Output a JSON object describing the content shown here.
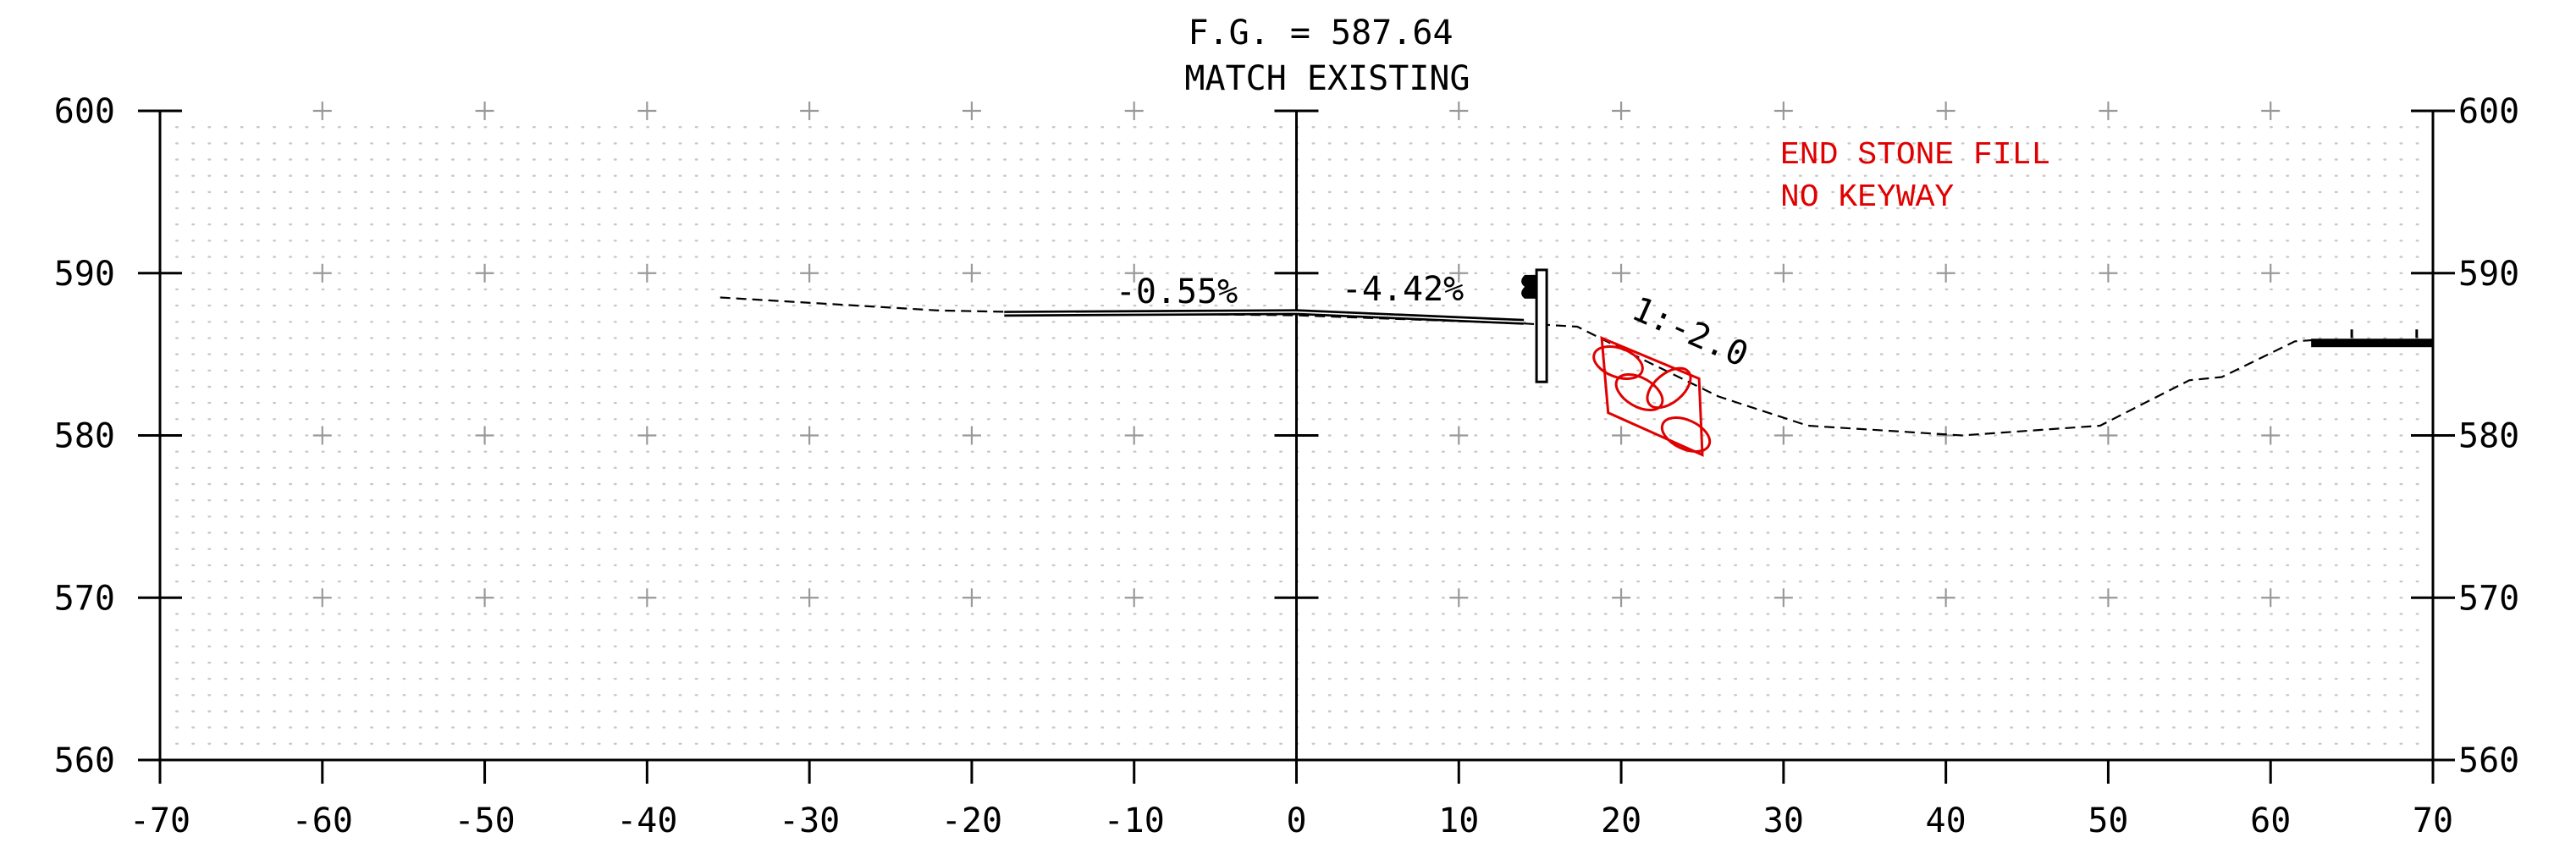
{
  "header": {
    "fg_line": "F.G. = 587.64",
    "match_line": "MATCH EXISTING"
  },
  "notes": {
    "line1": "END STONE FILL",
    "line2": "NO KEYWAY"
  },
  "annotations": {
    "left_slope": "-0.55%",
    "right_slope": "-4.42%",
    "side_slope": "1:-2.0"
  },
  "axes": {
    "x_ticks": [
      "-70",
      "-60",
      "-50",
      "-40",
      "-30",
      "-20",
      "-10",
      "0",
      "10",
      "20",
      "30",
      "40",
      "50",
      "60",
      "70"
    ],
    "y_ticks": [
      "600",
      "590",
      "580",
      "570",
      "560"
    ],
    "x_range": [
      -70,
      70
    ],
    "y_range": [
      560,
      600
    ]
  },
  "profile": {
    "existing_ground": [
      [
        -35.5,
        588.5
      ],
      [
        -22,
        587.7
      ],
      [
        -17,
        587.6
      ],
      [
        0,
        587.4
      ],
      [
        14,
        586.9
      ],
      [
        17.3,
        586.7
      ],
      [
        21.5,
        584.6
      ],
      [
        26,
        582.4
      ],
      [
        31.5,
        580.6
      ],
      [
        41,
        580.0
      ],
      [
        49.5,
        580.6
      ],
      [
        55,
        583.4
      ],
      [
        57,
        583.6
      ],
      [
        61.5,
        585.8
      ],
      [
        63,
        585.9
      ]
    ],
    "proposed_grade": [
      [
        -18,
        587.5
      ],
      [
        0,
        587.6
      ],
      [
        14,
        587.0
      ]
    ],
    "stone_fill": [
      [
        18.8,
        586.0
      ],
      [
        24.8,
        583.5
      ],
      [
        25.0,
        578.8
      ],
      [
        19.2,
        581.4
      ]
    ],
    "wall": {
      "x": 15.1,
      "top": 590.2,
      "bottom": 583.3
    },
    "right_road": {
      "x0": 62.5,
      "x1": 70,
      "y": 585.7
    }
  },
  "colors": {
    "ink": "#000000",
    "note": "#e00000",
    "grid_dot": "#c8c8c8",
    "grid_cross": "#999999"
  }
}
